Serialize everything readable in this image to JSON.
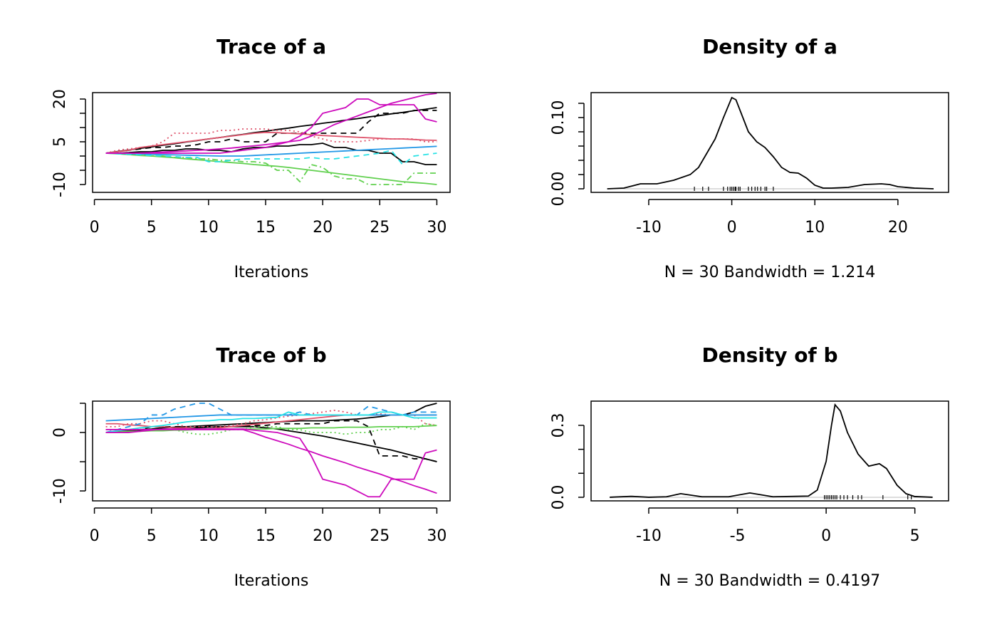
{
  "chart_data": [
    {
      "type": "trace",
      "title": "Trace of a",
      "xlabel": "Iterations",
      "x": [
        1,
        2,
        3,
        4,
        5,
        6,
        7,
        8,
        9,
        10,
        11,
        12,
        13,
        14,
        15,
        16,
        17,
        18,
        19,
        20,
        21,
        22,
        23,
        24,
        25,
        26,
        27,
        28,
        29,
        30
      ],
      "xlim": [
        -0.16,
        31.16
      ],
      "xticks": [
        0,
        5,
        10,
        15,
        20,
        25,
        30
      ],
      "ylim": [
        -12.75,
        22.25
      ],
      "yticks": [
        -10,
        5,
        20
      ],
      "yminor": [
        -5,
        0,
        10,
        15
      ],
      "series": [
        {
          "color": "#000000",
          "dash": "solid",
          "values": [
            1,
            1.6,
            2.1,
            2.7,
            3.2,
            3.8,
            4.3,
            4.9,
            5.4,
            6,
            6.5,
            7.1,
            7.6,
            8.2,
            8.7,
            9.3,
            9.8,
            10.4,
            10.9,
            11.5,
            12,
            12.6,
            13.1,
            13.7,
            14.2,
            14.8,
            15.3,
            15.9,
            16.4,
            17
          ]
        },
        {
          "color": "#000000",
          "dash": "dashed",
          "values": [
            1,
            1.5,
            2,
            2.5,
            3,
            3,
            3.5,
            3.5,
            4,
            5,
            5,
            6,
            5,
            5,
            5,
            8,
            8,
            8,
            8,
            8,
            8,
            8,
            8,
            12,
            15,
            15,
            15,
            16,
            16,
            16
          ]
        },
        {
          "color": "#000000",
          "dash": "solid",
          "values": [
            1,
            1,
            1.2,
            1.5,
            1.5,
            2,
            2,
            2.5,
            2.5,
            2,
            2,
            1.5,
            2.5,
            3,
            3,
            3.5,
            3.5,
            4,
            4,
            4.5,
            3,
            3,
            2,
            2,
            1,
            1,
            -2,
            -2,
            -3,
            -3
          ]
        },
        {
          "color": "#DF536B",
          "dash": "solid",
          "values": [
            1,
            1.5,
            2,
            3,
            3.5,
            4,
            4.5,
            5,
            5.5,
            6,
            6.5,
            7,
            7.5,
            8,
            8.3,
            8.2,
            8,
            7.8,
            7.5,
            7.2,
            7,
            6.8,
            6.6,
            6.4,
            6.2,
            6,
            6,
            5.8,
            5.6,
            5.5
          ]
        },
        {
          "color": "#DF536B",
          "dash": "dotted",
          "values": [
            1,
            2,
            2.5,
            3,
            3.5,
            5,
            8,
            8,
            8,
            8,
            9,
            9,
            9.5,
            9.5,
            9.5,
            9,
            9,
            8.5,
            7,
            6,
            5,
            5,
            5,
            5.5,
            6,
            6,
            6,
            6,
            5,
            5
          ]
        },
        {
          "color": "#61D04F",
          "dash": "solid",
          "values": [
            1,
            0.8,
            0.5,
            0.2,
            0,
            -0.3,
            -0.6,
            -1,
            -1.3,
            -1.6,
            -2,
            -2.3,
            -2.6,
            -3,
            -3.3,
            -3.6,
            -4,
            -4.5,
            -5,
            -5.5,
            -6,
            -6.5,
            -7,
            -7.5,
            -8,
            -8.5,
            -9,
            -9.3,
            -9.6,
            -10
          ]
        },
        {
          "color": "#61D04F",
          "dash": "dotdash",
          "values": [
            1,
            1,
            0.5,
            0.5,
            0,
            0,
            -0.5,
            -0.5,
            -1,
            -1,
            -1.5,
            -1.5,
            -2,
            -2,
            -2.5,
            -5,
            -5,
            -9,
            -3,
            -4,
            -7,
            -8,
            -8,
            -10,
            -10,
            -10,
            -10,
            -6,
            -6,
            -6
          ]
        },
        {
          "color": "#2297E6",
          "dash": "solid",
          "values": [
            1,
            0.9,
            0.8,
            0.7,
            0.6,
            0.5,
            0.4,
            0.3,
            0.2,
            0.1,
            0,
            0,
            0,
            0.2,
            0.4,
            0.6,
            0.8,
            1,
            1.2,
            1.4,
            1.6,
            1.8,
            2,
            2.2,
            2.4,
            2.6,
            2.8,
            3,
            3.2,
            3.4
          ]
        },
        {
          "color": "#28E2E5",
          "dash": "dashed",
          "values": [
            1,
            0.8,
            0.6,
            0.4,
            0.2,
            0,
            -0.2,
            -0.5,
            -0.5,
            -2,
            -2,
            -1.5,
            -1,
            -1,
            -1,
            -1,
            -1,
            -1,
            -0.5,
            -1,
            -1,
            -0.5,
            0,
            0.5,
            1,
            2,
            -3,
            0,
            0.5,
            1
          ]
        },
        {
          "color": "#CD0BBC",
          "dash": "solid",
          "values": [
            1,
            1,
            1,
            1,
            1,
            1,
            1,
            1,
            1,
            1,
            1,
            1.5,
            2,
            2.5,
            3,
            4,
            5,
            7,
            10,
            15,
            16,
            17,
            20,
            20,
            18,
            18,
            18,
            18,
            13,
            12
          ]
        },
        {
          "color": "#CD0BBC",
          "dash": "solid",
          "values": [
            1,
            1,
            1,
            1,
            1.2,
            1.4,
            1.6,
            1.8,
            2,
            2.2,
            2.5,
            2.8,
            3.2,
            3.6,
            4,
            4.5,
            5,
            5.5,
            7,
            9,
            11,
            12.5,
            14,
            15.5,
            17,
            18.5,
            19.5,
            20.5,
            21.5,
            22
          ]
        }
      ]
    },
    {
      "type": "density",
      "title": "Density of a",
      "xlabel": "N = 30   Bandwidth = 1.214",
      "x": [
        -15,
        -13,
        -11,
        -9,
        -7,
        -5,
        -4,
        -3,
        -2,
        -1,
        0,
        0.5,
        1,
        2,
        3,
        4,
        5,
        6,
        7,
        8,
        9,
        10,
        11,
        12,
        14,
        16,
        18,
        19,
        20,
        22,
        24.3
      ],
      "values": [
        0,
        0.001,
        0.007,
        0.007,
        0.012,
        0.02,
        0.03,
        0.05,
        0.07,
        0.1,
        0.128,
        0.125,
        0.11,
        0.08,
        0.066,
        0.058,
        0.045,
        0.03,
        0.023,
        0.022,
        0.015,
        0.005,
        0.001,
        0.001,
        0.002,
        0.006,
        0.007,
        0.006,
        0.003,
        0.001,
        0
      ],
      "rug": [
        -4.5,
        -3.5,
        -2.8,
        -1,
        -0.5,
        -0.2,
        0,
        0.2,
        0.4,
        0.5,
        0.8,
        1,
        2,
        2.4,
        2.8,
        3.1,
        3.5,
        4,
        4.2,
        5
      ],
      "xlim": [
        -16.94,
        26.1
      ],
      "xticks": [
        -10,
        0,
        10,
        20
      ],
      "ylim": [
        -0.005,
        0.135
      ],
      "yticks": [
        {
          "value": 0,
          "label": "0.00"
        },
        {
          "value": 0.1,
          "label": "0.10"
        }
      ],
      "yminor": [
        0.02,
        0.04,
        0.06,
        0.08,
        0.12
      ]
    },
    {
      "type": "trace",
      "title": "Trace of b",
      "xlabel": "Iterations",
      "x": [
        1,
        2,
        3,
        4,
        5,
        6,
        7,
        8,
        9,
        10,
        11,
        12,
        13,
        14,
        15,
        16,
        17,
        18,
        19,
        20,
        21,
        22,
        23,
        24,
        25,
        26,
        27,
        28,
        29,
        30
      ],
      "xlim": [
        -0.16,
        31.16
      ],
      "xticks": [
        0,
        5,
        10,
        15,
        20,
        25,
        30
      ],
      "ylim": [
        -11.7,
        5.37
      ],
      "yticks": [
        -10,
        0
      ],
      "yminor": [
        -5,
        5
      ],
      "series": [
        {
          "color": "#000000",
          "dash": "solid",
          "values": [
            0,
            0.2,
            0.3,
            0.5,
            0.6,
            0.8,
            0.9,
            1,
            1.1,
            1.2,
            1.3,
            1.4,
            1.5,
            1.6,
            1.7,
            1.8,
            1.9,
            2,
            2,
            2,
            2.1,
            2.2,
            2.3,
            2.5,
            2.7,
            3,
            3,
            3.5,
            4.5,
            5
          ]
        },
        {
          "color": "#000000",
          "dash": "solid",
          "values": [
            0,
            0.1,
            0.2,
            0.3,
            0.4,
            0.5,
            0.6,
            0.7,
            0.8,
            0.9,
            1,
            1,
            1,
            1,
            0.8,
            0.6,
            0.3,
            0,
            -0.3,
            -0.6,
            -1,
            -1.4,
            -1.8,
            -2.2,
            -2.6,
            -3,
            -3.5,
            -4,
            -4.5,
            -5
          ]
        },
        {
          "color": "#000000",
          "dash": "dashed",
          "values": [
            0,
            0,
            0.5,
            0.5,
            1,
            1,
            1,
            1,
            1,
            1,
            1,
            1,
            1.2,
            1.2,
            1.2,
            1.5,
            1.5,
            1.5,
            1.5,
            1.5,
            2,
            2,
            2,
            1,
            -4,
            -4,
            -4,
            -4.5,
            -4.5,
            -5
          ]
        },
        {
          "color": "#DF536B",
          "dash": "solid",
          "values": [
            1.5,
            1.5,
            1.3,
            1.2,
            1,
            1,
            0.8,
            0.8,
            0.6,
            0.6,
            0.8,
            1,
            1.2,
            1.4,
            1.6,
            1.8,
            2,
            2.2,
            2.4,
            2.6,
            2.8,
            3,
            3,
            3,
            3,
            3,
            3,
            3,
            3,
            3
          ]
        },
        {
          "color": "#DF536B",
          "dash": "dotted",
          "values": [
            1,
            1,
            1.5,
            1.5,
            2,
            2,
            1.5,
            1,
            1,
            1,
            1,
            1.2,
            1.5,
            2,
            2.2,
            2.5,
            2.8,
            3,
            3.2,
            3.5,
            3.8,
            3.5,
            3,
            3,
            3.2,
            3,
            3,
            3,
            1.5,
            1.2
          ]
        },
        {
          "color": "#61D04F",
          "dash": "solid",
          "values": [
            0,
            0.1,
            0.2,
            0.2,
            0.3,
            0.3,
            0.4,
            0.4,
            0.5,
            0.5,
            0.5,
            0.5,
            0.6,
            0.6,
            0.6,
            0.7,
            0.7,
            0.7,
            0.8,
            0.8,
            0.8,
            0.9,
            0.9,
            0.9,
            1,
            1,
            1,
            1,
            1.1,
            1.2
          ]
        },
        {
          "color": "#61D04F",
          "dash": "dotted",
          "values": [
            0.5,
            0.5,
            0.5,
            0.5,
            0.5,
            0.5,
            0.5,
            0,
            -0.3,
            -0.3,
            0,
            0.5,
            0.5,
            1,
            1,
            1,
            0.5,
            0.5,
            0,
            0,
            0,
            -0.3,
            0,
            0,
            0.5,
            0.5,
            1,
            0.5,
            1.5,
            1.2
          ]
        },
        {
          "color": "#2297E6",
          "dash": "solid",
          "values": [
            2,
            2.1,
            2.2,
            2.3,
            2.4,
            2.5,
            2.6,
            2.7,
            2.8,
            2.9,
            3,
            3,
            3,
            3,
            3,
            3,
            3,
            3,
            3,
            3,
            3,
            3,
            3,
            3,
            3,
            3,
            3,
            3,
            3,
            3
          ]
        },
        {
          "color": "#2297E6",
          "dash": "dashed",
          "values": [
            0,
            0.5,
            1,
            1.5,
            3,
            3,
            4,
            4.5,
            5,
            5,
            4,
            3,
            3,
            3,
            3,
            3,
            3,
            3.5,
            3,
            3,
            3,
            3,
            3,
            4.5,
            4,
            3.5,
            3,
            3.5,
            3.5,
            3.5
          ]
        },
        {
          "color": "#28E2E5",
          "dash": "solid",
          "values": [
            0,
            0.3,
            0.5,
            0.8,
            1,
            1.2,
            1.5,
            1.8,
            2,
            2,
            2.2,
            2.2,
            2.4,
            2.4,
            2.5,
            2.6,
            3.5,
            3,
            3,
            3,
            3,
            3,
            3,
            3,
            3.5,
            3.5,
            3,
            2.5,
            2.5,
            2.5
          ]
        },
        {
          "color": "#CD0BBC",
          "dash": "solid",
          "values": [
            0,
            0,
            0,
            0.2,
            0.4,
            0.6,
            0.6,
            0.6,
            0.6,
            0.6,
            0.6,
            0.6,
            0.6,
            0.4,
            0.2,
            0,
            -0.5,
            -1,
            -4,
            -8,
            -8.5,
            -9,
            -10,
            -11,
            -11,
            -8,
            -8,
            -8,
            -3.5,
            -3
          ]
        },
        {
          "color": "#CD0BBC",
          "dash": "solid",
          "values": [
            0.5,
            0.5,
            0.5,
            0.5,
            0.5,
            0.5,
            0.5,
            0.5,
            0.5,
            0.5,
            0.5,
            0.5,
            0.5,
            -0.1,
            -0.8,
            -1.4,
            -2,
            -2.7,
            -3.3,
            -4,
            -4.6,
            -5.2,
            -5.9,
            -6.5,
            -7.1,
            -7.8,
            -8.4,
            -9.1,
            -9.7,
            -10.4
          ]
        }
      ]
    },
    {
      "type": "density",
      "title": "Density of b",
      "xlabel": "N = 30   Bandwidth = 0.4197",
      "x": [
        -12.2,
        -11,
        -10,
        -9,
        -8.2,
        -7,
        -5.5,
        -4.3,
        -3,
        -1,
        -0.5,
        0,
        0.3,
        0.5,
        0.8,
        1.2,
        1.8,
        2.4,
        3,
        3.4,
        4,
        4.5,
        5,
        6
      ],
      "values": [
        0,
        0.004,
        0,
        0.002,
        0.015,
        0.002,
        0.002,
        0.018,
        0.002,
        0.005,
        0.03,
        0.15,
        0.3,
        0.386,
        0.36,
        0.27,
        0.18,
        0.13,
        0.14,
        0.12,
        0.05,
        0.015,
        0.003,
        0
      ],
      "rug": [
        -0.1,
        0,
        0.1,
        0.2,
        0.3,
        0.4,
        0.5,
        0.6,
        0.8,
        1,
        1.2,
        1.5,
        1.8,
        2,
        3.2,
        4.6,
        4.8
      ],
      "xlim": [
        -13.25,
        6.9
      ],
      "xticks": [
        -10,
        -5,
        0,
        5
      ],
      "ylim": [
        -0.015,
        0.401
      ],
      "yticks": [
        {
          "value": 0,
          "label": "0.0"
        },
        {
          "value": 0.3,
          "label": "0.3"
        }
      ],
      "yminor": [
        0.1,
        0.2
      ]
    }
  ]
}
